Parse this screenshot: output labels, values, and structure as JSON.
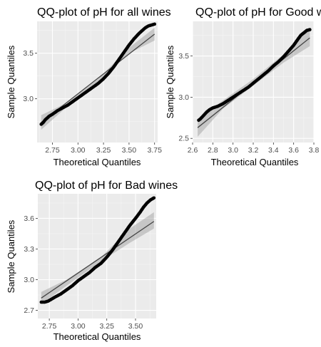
{
  "chart_data": [
    {
      "type": "scatter",
      "title": "QQ-plot of pH for all wines",
      "xlabel": "Theoretical Quantiles",
      "ylabel": "Sample Quantiles",
      "xlim": [
        2.6,
        3.78
      ],
      "ylim": [
        2.52,
        3.85
      ],
      "xticks": [
        2.75,
        3.0,
        3.25,
        3.5,
        3.75
      ],
      "xtick_labels": [
        "2.75",
        "3.00",
        "3.25",
        "3.50",
        "3.75"
      ],
      "yticks": [
        3.0,
        3.5
      ],
      "ytick_labels": [
        "3.0",
        "3.5"
      ],
      "grid": true,
      "series": [
        {
          "values": [
            [
              2.64,
              2.72
            ],
            [
              2.66,
              2.74
            ],
            [
              2.68,
              2.77
            ],
            [
              2.7,
              2.79
            ],
            [
              2.72,
              2.81
            ],
            [
              2.75,
              2.83
            ],
            [
              2.8,
              2.87
            ],
            [
              2.85,
              2.9
            ],
            [
              2.9,
              2.93
            ],
            [
              2.95,
              2.97
            ],
            [
              3.0,
              3.01
            ],
            [
              3.05,
              3.05
            ],
            [
              3.1,
              3.09
            ],
            [
              3.15,
              3.13
            ],
            [
              3.2,
              3.17
            ],
            [
              3.25,
              3.22
            ],
            [
              3.3,
              3.28
            ],
            [
              3.35,
              3.35
            ],
            [
              3.4,
              3.43
            ],
            [
              3.45,
              3.51
            ],
            [
              3.5,
              3.59
            ],
            [
              3.55,
              3.66
            ],
            [
              3.6,
              3.72
            ],
            [
              3.63,
              3.75
            ],
            [
              3.66,
              3.78
            ],
            [
              3.69,
              3.8
            ],
            [
              3.72,
              3.81
            ],
            [
              3.75,
              3.82
            ]
          ]
        }
      ],
      "reference_line": [
        [
          2.64,
          2.74
        ],
        [
          3.75,
          3.71
        ]
      ],
      "band": [
        [
          2.64,
          2.66,
          2.82
        ],
        [
          2.9,
          2.92,
          2.96
        ],
        [
          3.2,
          3.18,
          3.22
        ],
        [
          3.5,
          3.5,
          3.56
        ],
        [
          3.75,
          3.64,
          3.78
        ]
      ]
    },
    {
      "type": "scatter",
      "title": "QQ-plot of pH for Good wines",
      "xlabel": "Theoretical Quantiles",
      "ylabel": "Sample Quantiles",
      "xlim": [
        2.6,
        3.8
      ],
      "ylim": [
        2.45,
        3.92
      ],
      "xticks": [
        2.6,
        2.8,
        3.0,
        3.2,
        3.4,
        3.6,
        3.8
      ],
      "xtick_labels": [
        "2.6",
        "2.8",
        "3.0",
        "3.2",
        "3.4",
        "3.6",
        "3.8"
      ],
      "yticks": [
        2.5,
        3.0,
        3.5
      ],
      "ytick_labels": [
        "2.5",
        "3.0",
        "3.5"
      ],
      "grid": true,
      "series": [
        {
          "values": [
            [
              2.66,
              2.72
            ],
            [
              2.68,
              2.74
            ],
            [
              2.71,
              2.78
            ],
            [
              2.74,
              2.82
            ],
            [
              2.77,
              2.85
            ],
            [
              2.8,
              2.87
            ],
            [
              2.85,
              2.89
            ],
            [
              2.9,
              2.92
            ],
            [
              2.95,
              2.96
            ],
            [
              3.0,
              3.0
            ],
            [
              3.05,
              3.04
            ],
            [
              3.1,
              3.08
            ],
            [
              3.15,
              3.12
            ],
            [
              3.2,
              3.17
            ],
            [
              3.25,
              3.22
            ],
            [
              3.3,
              3.27
            ],
            [
              3.35,
              3.32
            ],
            [
              3.4,
              3.38
            ],
            [
              3.45,
              3.43
            ],
            [
              3.5,
              3.49
            ],
            [
              3.55,
              3.56
            ],
            [
              3.6,
              3.63
            ],
            [
              3.64,
              3.7
            ],
            [
              3.67,
              3.75
            ],
            [
              3.7,
              3.78
            ],
            [
              3.73,
              3.81
            ],
            [
              3.76,
              3.82
            ]
          ]
        }
      ],
      "reference_line": [
        [
          2.65,
          2.63
        ],
        [
          3.76,
          3.72
        ]
      ],
      "band": [
        [
          2.65,
          2.52,
          2.74
        ],
        [
          2.9,
          2.86,
          2.96
        ],
        [
          3.2,
          3.14,
          3.22
        ],
        [
          3.5,
          3.42,
          3.52
        ],
        [
          3.76,
          3.62,
          3.84
        ]
      ]
    },
    {
      "type": "scatter",
      "title": "QQ-plot of pH for Bad wines",
      "xlabel": "Theoretical Quantiles",
      "ylabel": "Sample Quantiles",
      "xlim": [
        2.65,
        3.68
      ],
      "ylim": [
        2.62,
        3.84
      ],
      "xticks": [
        2.75,
        3.0,
        3.25,
        3.5
      ],
      "xtick_labels": [
        "2.75",
        "3.00",
        "3.25",
        "3.50"
      ],
      "yticks": [
        2.7,
        3.0,
        3.3,
        3.6
      ],
      "ytick_labels": [
        "2.7",
        "3.0",
        "3.3",
        "3.6"
      ],
      "grid": true,
      "series": [
        {
          "values": [
            [
              2.68,
              2.78
            ],
            [
              2.71,
              2.78
            ],
            [
              2.74,
              2.79
            ],
            [
              2.77,
              2.81
            ],
            [
              2.8,
              2.83
            ],
            [
              2.85,
              2.86
            ],
            [
              2.9,
              2.9
            ],
            [
              2.95,
              2.94
            ],
            [
              3.0,
              2.99
            ],
            [
              3.05,
              3.03
            ],
            [
              3.1,
              3.07
            ],
            [
              3.15,
              3.12
            ],
            [
              3.2,
              3.16
            ],
            [
              3.25,
              3.22
            ],
            [
              3.3,
              3.29
            ],
            [
              3.35,
              3.37
            ],
            [
              3.4,
              3.45
            ],
            [
              3.45,
              3.53
            ],
            [
              3.5,
              3.6
            ],
            [
              3.54,
              3.66
            ],
            [
              3.57,
              3.71
            ],
            [
              3.6,
              3.75
            ],
            [
              3.63,
              3.78
            ],
            [
              3.66,
              3.8
            ]
          ]
        }
      ],
      "reference_line": [
        [
          2.68,
          2.82
        ],
        [
          3.66,
          3.57
        ]
      ],
      "band": [
        [
          2.68,
          2.76,
          2.88
        ],
        [
          2.9,
          2.94,
          3.0
        ],
        [
          3.2,
          3.18,
          3.22
        ],
        [
          3.45,
          3.36,
          3.5
        ],
        [
          3.66,
          3.5,
          3.66
        ]
      ]
    }
  ]
}
